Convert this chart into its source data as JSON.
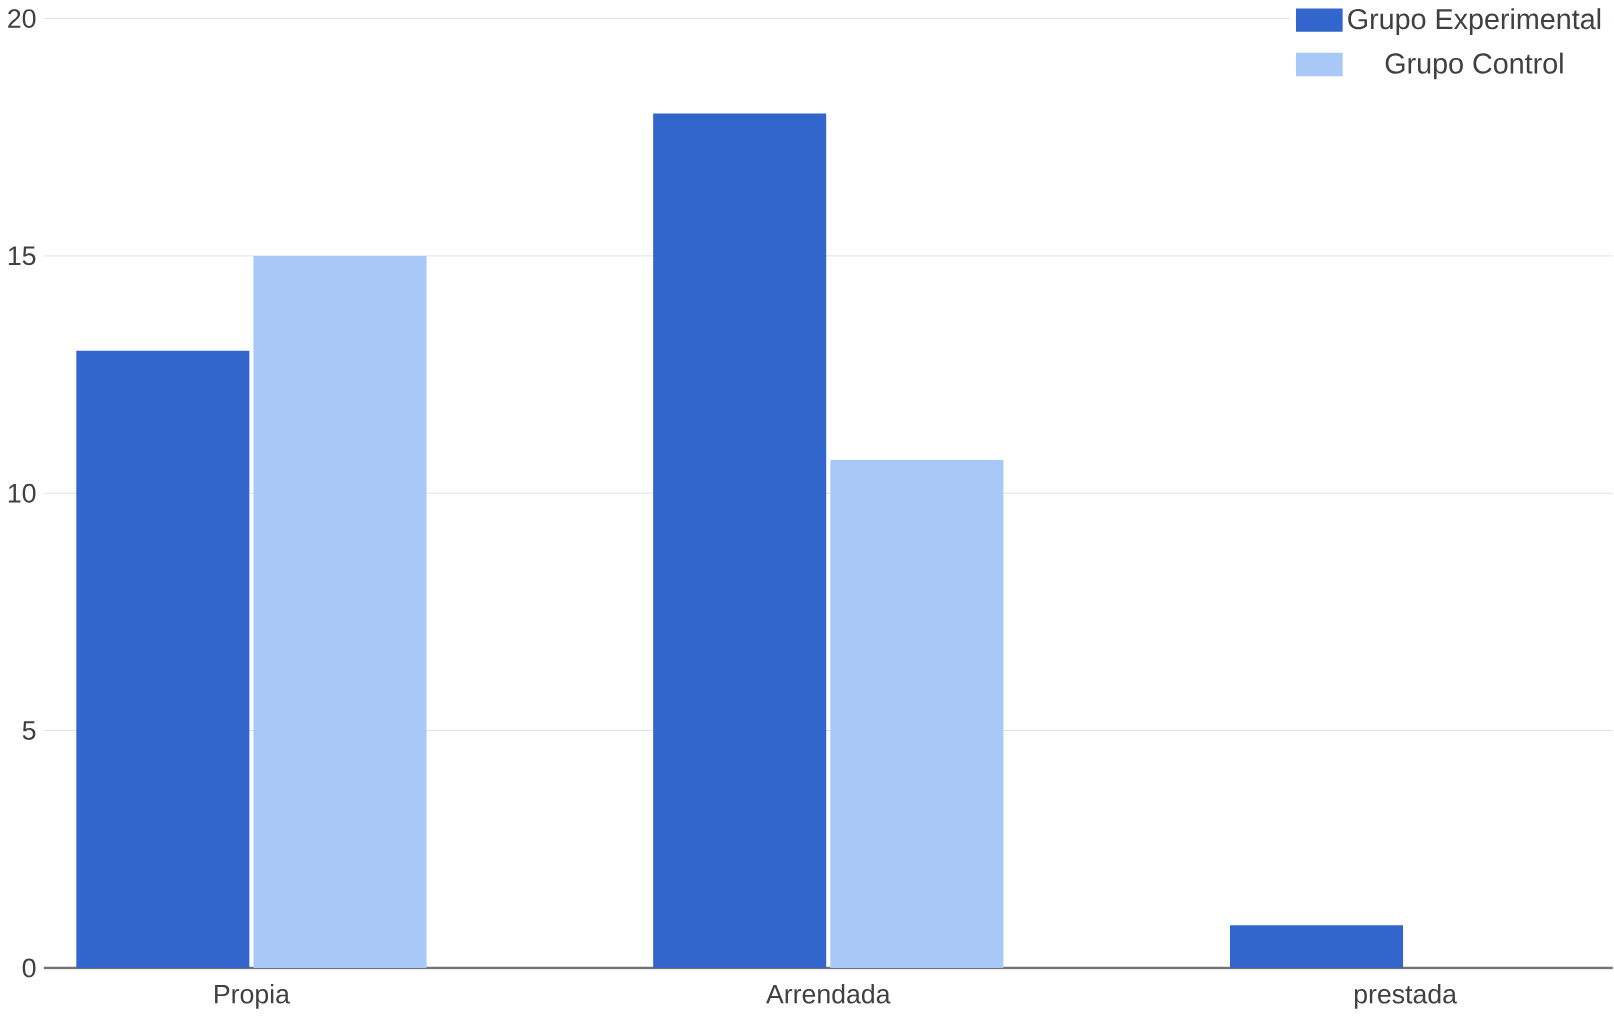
{
  "chart_data": {
    "type": "bar",
    "categories": [
      "Propia",
      "Arrendada",
      "prestada"
    ],
    "series": [
      {
        "name": "Grupo Experimental",
        "color": "#3366cc",
        "values": [
          13,
          18,
          0.9
        ]
      },
      {
        "name": "Grupo Control",
        "color": "#a8c8f8",
        "values": [
          15,
          10.7,
          0
        ]
      }
    ],
    "ylim": [
      0,
      20
    ],
    "yticks": [
      0,
      5,
      10,
      15,
      20
    ],
    "grid": "y",
    "legend": "top right"
  }
}
